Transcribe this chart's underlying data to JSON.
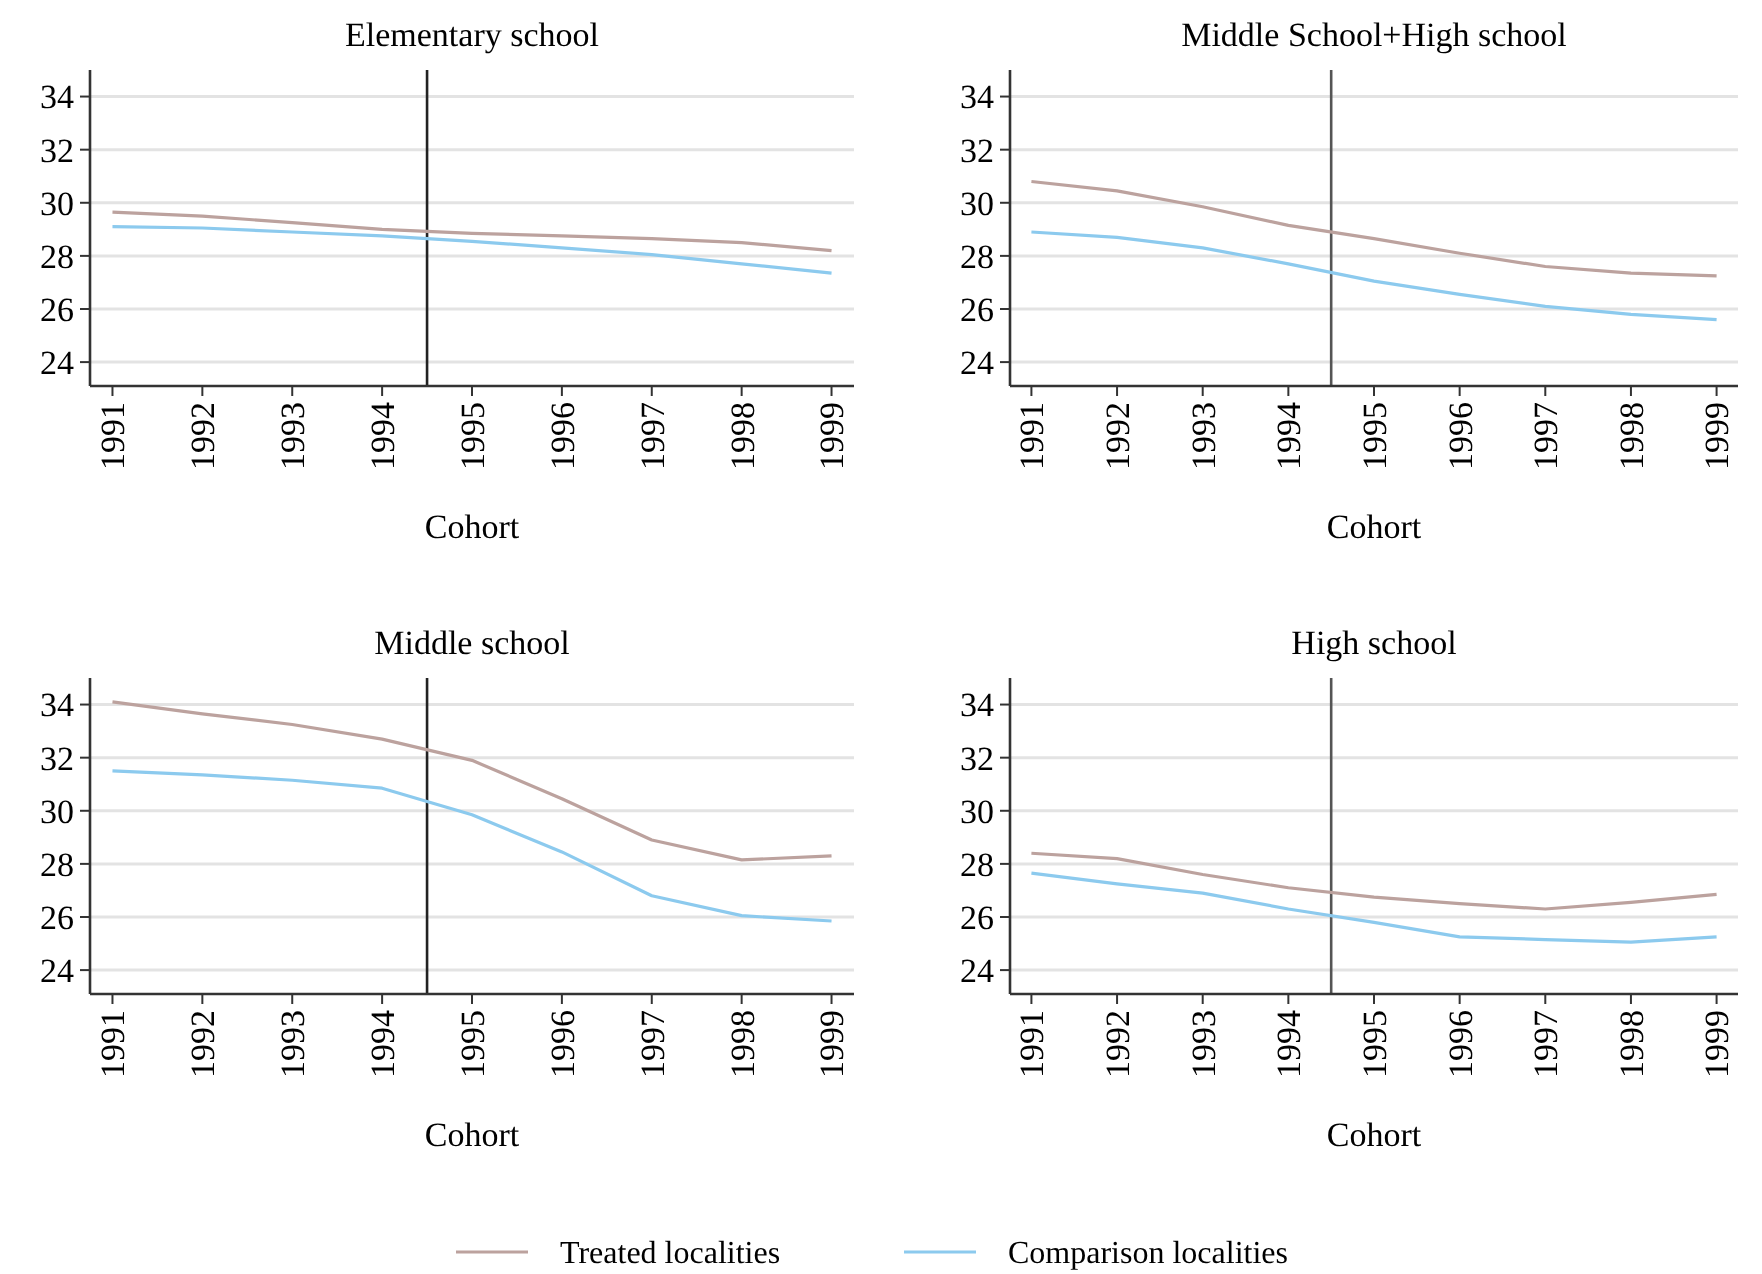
{
  "chart_data": [
    {
      "type": "line",
      "title": "Elementary school",
      "xlabel": "Cohort",
      "x": [
        1991,
        1992,
        1993,
        1994,
        1995,
        1996,
        1997,
        1998,
        1999
      ],
      "xlim": [
        1990.75,
        1999.25
      ],
      "xticks": [
        1991,
        1992,
        1993,
        1994,
        1995,
        1996,
        1997,
        1998,
        1999
      ],
      "ylim": [
        23.1,
        35
      ],
      "yticks": [
        24,
        26,
        28,
        30,
        32,
        34
      ],
      "grid": "y",
      "legend": "bottom",
      "ref_lines": [
        {
          "axis": "x",
          "value": 1994.5,
          "color": "#222222"
        }
      ],
      "series": [
        {
          "name": "Treated localities",
          "color": "#bca29e",
          "values": [
            29.65,
            29.5,
            29.25,
            29.0,
            28.85,
            28.75,
            28.65,
            28.5,
            28.2
          ]
        },
        {
          "name": "Comparison localities",
          "color": "#8ccaee",
          "values": [
            29.1,
            29.05,
            28.9,
            28.75,
            28.55,
            28.3,
            28.05,
            27.7,
            27.35
          ]
        }
      ]
    },
    {
      "type": "line",
      "title": "Middle School+High school",
      "xlabel": "Cohort",
      "x": [
        1991,
        1992,
        1993,
        1994,
        1995,
        1996,
        1997,
        1998,
        1999
      ],
      "xlim": [
        1990.75,
        1999.25
      ],
      "xticks": [
        1991,
        1992,
        1993,
        1994,
        1995,
        1996,
        1997,
        1998,
        1999
      ],
      "ylim": [
        23.1,
        35
      ],
      "yticks": [
        24,
        26,
        28,
        30,
        32,
        34
      ],
      "grid": "y",
      "ref_lines": [
        {
          "axis": "x",
          "value": 1994.5,
          "color": "#555555"
        }
      ],
      "series": [
        {
          "color": "#bca29e",
          "values": [
            30.8,
            30.45,
            29.85,
            29.15,
            28.65,
            28.1,
            27.6,
            27.35,
            27.25
          ]
        },
        {
          "color": "#8ccaee",
          "values": [
            28.9,
            28.7,
            28.3,
            27.7,
            27.05,
            26.55,
            26.1,
            25.8,
            25.6
          ]
        }
      ]
    },
    {
      "type": "line",
      "title": "Middle school",
      "xlabel": "Cohort",
      "x": [
        1991,
        1992,
        1993,
        1994,
        1995,
        1996,
        1997,
        1998,
        1999
      ],
      "xlim": [
        1990.75,
        1999.25
      ],
      "xticks": [
        1991,
        1992,
        1993,
        1994,
        1995,
        1996,
        1997,
        1998,
        1999
      ],
      "ylim": [
        23.1,
        35
      ],
      "yticks": [
        24,
        26,
        28,
        30,
        32,
        34
      ],
      "grid": "y",
      "ref_lines": [
        {
          "axis": "x",
          "value": 1994.5,
          "color": "#222222"
        }
      ],
      "series": [
        {
          "color": "#bca29e",
          "values": [
            34.1,
            33.65,
            33.25,
            32.7,
            31.9,
            30.45,
            28.9,
            28.15,
            28.3
          ]
        },
        {
          "color": "#8ccaee",
          "values": [
            31.5,
            31.35,
            31.15,
            30.85,
            29.85,
            28.45,
            26.8,
            26.05,
            25.85
          ]
        }
      ]
    },
    {
      "type": "line",
      "title": "High school",
      "xlabel": "Cohort",
      "x": [
        1991,
        1992,
        1993,
        1994,
        1995,
        1996,
        1997,
        1998,
        1999
      ],
      "xlim": [
        1990.75,
        1999.25
      ],
      "xticks": [
        1991,
        1992,
        1993,
        1994,
        1995,
        1996,
        1997,
        1998,
        1999
      ],
      "ylim": [
        23.1,
        35
      ],
      "yticks": [
        24,
        26,
        28,
        30,
        32,
        34
      ],
      "grid": "y",
      "ref_lines": [
        {
          "axis": "x",
          "value": 1994.5,
          "color": "#555555"
        }
      ],
      "series": [
        {
          "color": "#bca29e",
          "values": [
            28.4,
            28.2,
            27.6,
            27.1,
            26.75,
            26.5,
            26.3,
            26.55,
            26.85
          ]
        },
        {
          "color": "#8ccaee",
          "values": [
            27.65,
            27.25,
            26.9,
            26.3,
            25.8,
            25.25,
            25.15,
            25.05,
            25.25
          ]
        }
      ]
    }
  ]
}
